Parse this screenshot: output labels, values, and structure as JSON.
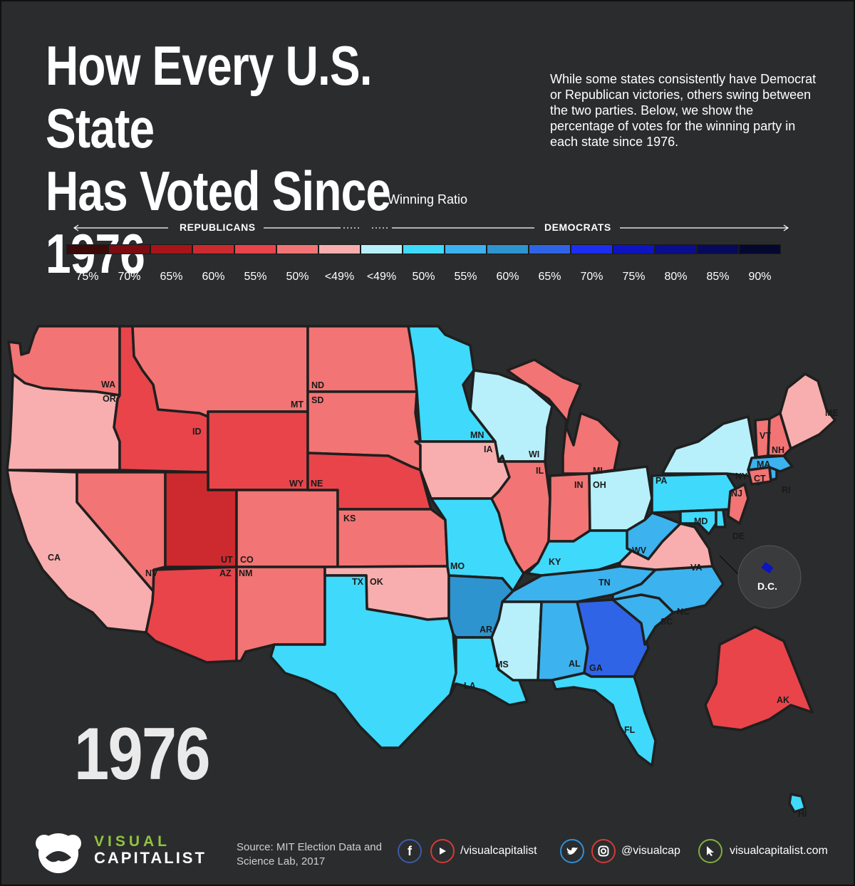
{
  "title_line1": "How Every U.S. State",
  "title_line2": "Has Voted Since 1976",
  "intro": "While some states consistently have Democrat or Republican victories, others swing between the two parties. Below, we show the percentage of votes for the winning party in each state since 1976.",
  "legend": {
    "title": "Winning Ratio",
    "left_label": "REPUBLICANS",
    "right_label": "DEMOCRATS",
    "bins": [
      {
        "label": "75%",
        "color": "#3d0a0a"
      },
      {
        "label": "70%",
        "color": "#7a0c12"
      },
      {
        "label": "65%",
        "color": "#a81419"
      },
      {
        "label": "60%",
        "color": "#cc2a2e"
      },
      {
        "label": "55%",
        "color": "#e8444a"
      },
      {
        "label": "50%",
        "color": "#f27474"
      },
      {
        "label": "<49%",
        "color": "#f8aeae"
      },
      {
        "label": "<49%",
        "color": "#b7f0fb"
      },
      {
        "label": "50%",
        "color": "#3fd9fb"
      },
      {
        "label": "55%",
        "color": "#3cb2ef"
      },
      {
        "label": "60%",
        "color": "#2e94cf"
      },
      {
        "label": "65%",
        "color": "#2f64e6"
      },
      {
        "label": "70%",
        "color": "#1d2ef0"
      },
      {
        "label": "75%",
        "color": "#0e14c0"
      },
      {
        "label": "80%",
        "color": "#0a0d8c"
      },
      {
        "label": "85%",
        "color": "#070a5c"
      },
      {
        "label": "90%",
        "color": "#05082e"
      }
    ]
  },
  "year": "1976",
  "dc_label": "D.C.",
  "states": [
    {
      "abbr": "WA",
      "color": "#f27474"
    },
    {
      "abbr": "OR",
      "color": "#f8aeae"
    },
    {
      "abbr": "CA",
      "color": "#f8aeae"
    },
    {
      "abbr": "ID",
      "color": "#e8444a"
    },
    {
      "abbr": "NV",
      "color": "#f27474"
    },
    {
      "abbr": "MT",
      "color": "#f27474"
    },
    {
      "abbr": "WY",
      "color": "#e8444a"
    },
    {
      "abbr": "UT",
      "color": "#cc2a2e"
    },
    {
      "abbr": "AZ",
      "color": "#e8444a"
    },
    {
      "abbr": "CO",
      "color": "#f27474"
    },
    {
      "abbr": "NM",
      "color": "#f27474"
    },
    {
      "abbr": "ND",
      "color": "#f27474"
    },
    {
      "abbr": "SD",
      "color": "#f27474"
    },
    {
      "abbr": "NE",
      "color": "#e8444a"
    },
    {
      "abbr": "KS",
      "color": "#f27474"
    },
    {
      "abbr": "OK",
      "color": "#f8aeae"
    },
    {
      "abbr": "TX",
      "color": "#3fd9fb"
    },
    {
      "abbr": "MN",
      "color": "#3fd9fb"
    },
    {
      "abbr": "IA",
      "color": "#f8aeae"
    },
    {
      "abbr": "MO",
      "color": "#3fd9fb"
    },
    {
      "abbr": "AR",
      "color": "#2e94cf"
    },
    {
      "abbr": "LA",
      "color": "#3fd9fb"
    },
    {
      "abbr": "WI",
      "color": "#b7f0fb"
    },
    {
      "abbr": "IL",
      "color": "#f27474"
    },
    {
      "abbr": "MI",
      "color": "#f27474"
    },
    {
      "abbr": "IN",
      "color": "#f27474"
    },
    {
      "abbr": "OH",
      "color": "#b7f0fb"
    },
    {
      "abbr": "KY",
      "color": "#3fd9fb"
    },
    {
      "abbr": "TN",
      "color": "#3cb2ef"
    },
    {
      "abbr": "MS",
      "color": "#b7f0fb"
    },
    {
      "abbr": "AL",
      "color": "#3cb2ef"
    },
    {
      "abbr": "GA",
      "color": "#2f64e6"
    },
    {
      "abbr": "FL",
      "color": "#3fd9fb"
    },
    {
      "abbr": "SC",
      "color": "#3cb2ef"
    },
    {
      "abbr": "NC",
      "color": "#3cb2ef"
    },
    {
      "abbr": "VA",
      "color": "#f8aeae"
    },
    {
      "abbr": "WV",
      "color": "#3cb2ef"
    },
    {
      "abbr": "PA",
      "color": "#3fd9fb"
    },
    {
      "abbr": "NY",
      "color": "#b7f0fb"
    },
    {
      "abbr": "MD",
      "color": "#3fd9fb"
    },
    {
      "abbr": "DE",
      "color": "#3fd9fb"
    },
    {
      "abbr": "NJ",
      "color": "#f27474"
    },
    {
      "abbr": "CT",
      "color": "#f27474"
    },
    {
      "abbr": "RI",
      "color": "#3cb2ef"
    },
    {
      "abbr": "MA",
      "color": "#3cb2ef"
    },
    {
      "abbr": "VT",
      "color": "#f27474"
    },
    {
      "abbr": "NH",
      "color": "#f27474"
    },
    {
      "abbr": "ME",
      "color": "#f8aeae"
    },
    {
      "abbr": "AK",
      "color": "#e8444a"
    },
    {
      "abbr": "HI",
      "color": "#3fd9fb"
    },
    {
      "abbr": "DC",
      "color": "#0e14c0"
    }
  ],
  "footer": {
    "logo_top": "VISUAL",
    "logo_bottom": "CAPITALIST",
    "source": "Source: MIT Election Data and Science Lab, 2017",
    "handle_video": "/visualcapitalist",
    "handle_social": "@visualcap",
    "website": "visualcapitalist.com",
    "icons": [
      "facebook-icon",
      "youtube-icon",
      "twitter-icon",
      "instagram-icon",
      "cursor-icon"
    ]
  }
}
